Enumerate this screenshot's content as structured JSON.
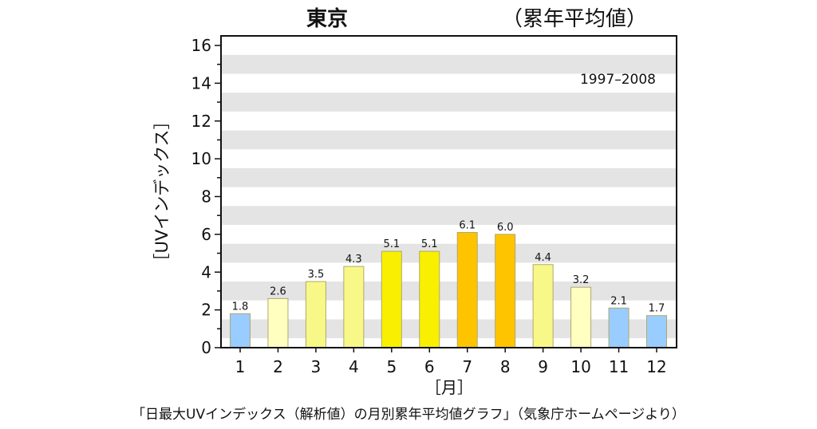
{
  "chart_data": {
    "type": "bar",
    "title": "東京",
    "subtitle": "（累年平均値）",
    "period_label": "1997–2008",
    "xlabel": "［月］",
    "ylabel": "［UVインデックス］",
    "categories": [
      "1",
      "2",
      "3",
      "4",
      "5",
      "6",
      "7",
      "8",
      "9",
      "10",
      "11",
      "12"
    ],
    "values": [
      1.8,
      2.6,
      3.5,
      4.3,
      5.1,
      5.1,
      6.1,
      6.0,
      4.4,
      3.2,
      2.1,
      1.7
    ],
    "value_labels": [
      "1.8",
      "2.6",
      "3.5",
      "4.3",
      "5.1",
      "5.1",
      "6.1",
      "6.0",
      "4.4",
      "3.2",
      "2.1",
      "1.7"
    ],
    "bar_colors": [
      "#99ccff",
      "#ffffc0",
      "#f8f888",
      "#f8f888",
      "#f8f000",
      "#f8f000",
      "#ffc400",
      "#ffc400",
      "#f8f888",
      "#ffffc0",
      "#99ccff",
      "#99ccff"
    ],
    "ylim": [
      0,
      16
    ],
    "yticks": [
      "0",
      "2",
      "4",
      "6",
      "8",
      "10",
      "12",
      "14",
      "16"
    ],
    "grid": "alternating horizontal gray bands",
    "band_color": "#e4e4e4"
  },
  "caption": "「日最大UVインデックス（解析値）の月別累年平均値グラフ」（気象庁ホームページより）"
}
